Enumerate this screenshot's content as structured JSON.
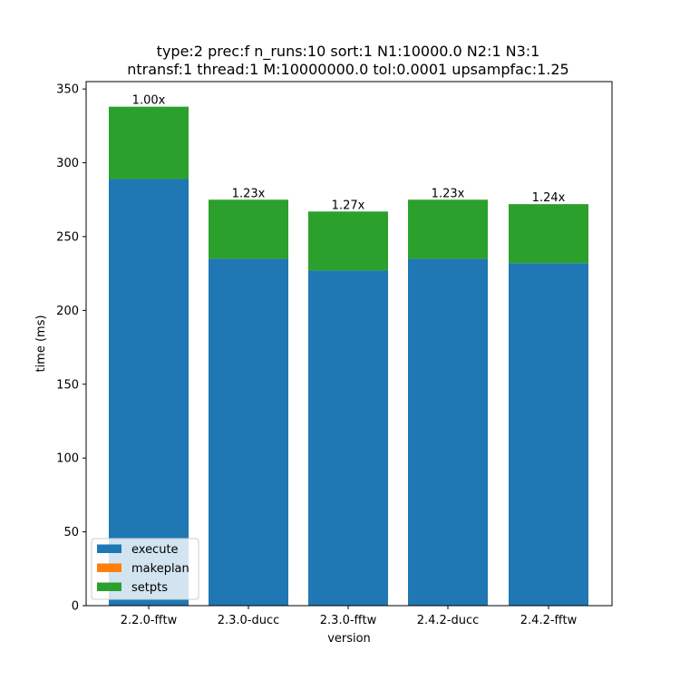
{
  "chart_data": {
    "type": "bar",
    "stacked": true,
    "title_lines": [
      "type:2 prec:f n_runs:10 sort:1 N1:10000.0 N2:1 N3:1",
      "ntransf:1 thread:1 M:10000000.0 tol:0.0001 upsampfac:1.25"
    ],
    "xlabel": "version",
    "ylabel": "time (ms)",
    "categories": [
      "2.2.0-fftw",
      "2.3.0-ducc",
      "2.3.0-fftw",
      "2.4.2-ducc",
      "2.4.2-fftw"
    ],
    "series": [
      {
        "name": "execute",
        "color": "#1f77b4",
        "values": [
          289,
          235,
          227,
          235,
          232
        ]
      },
      {
        "name": "makeplan",
        "color": "#ff7f0e",
        "values": [
          0,
          0,
          0,
          0,
          0
        ]
      },
      {
        "name": "setpts",
        "color": "#2ca02c",
        "values": [
          49,
          40,
          40,
          40,
          40
        ]
      }
    ],
    "bar_labels": [
      "1.00x",
      "1.23x",
      "1.27x",
      "1.23x",
      "1.24x"
    ],
    "ylim": [
      0,
      355
    ],
    "yticks": [
      0,
      50,
      100,
      150,
      200,
      250,
      300,
      350
    ],
    "legend": "lower-left",
    "grid": false
  }
}
